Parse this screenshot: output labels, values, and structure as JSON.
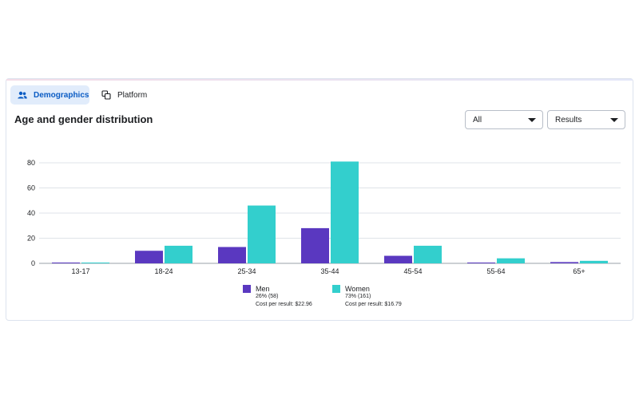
{
  "tabs": {
    "demographics_label": "Demographics",
    "platform_label": "Platform"
  },
  "section_title": "Age and gender distribution",
  "filters": {
    "audience_value": "All",
    "metric_value": "Results"
  },
  "colors": {
    "men": "#5a38c0",
    "women": "#33cfcd",
    "accent": "#0b5cc4"
  },
  "chart_data": {
    "type": "bar",
    "categories": [
      "13-17",
      "18-24",
      "25-34",
      "35-44",
      "45-54",
      "55-64",
      "65+"
    ],
    "series": [
      {
        "name": "Men",
        "values": [
          0.3,
          10,
          13,
          28,
          6,
          0.4,
          1
        ]
      },
      {
        "name": "Women",
        "values": [
          0.3,
          14,
          46,
          81,
          14,
          4,
          2
        ]
      }
    ],
    "ylim": [
      0,
      80
    ],
    "yticks": [
      0,
      20,
      40,
      60,
      80
    ],
    "grid": true,
    "legend_position": "bottom"
  },
  "legend": {
    "men": {
      "label": "Men",
      "share": "26% (58)",
      "cost": "Cost per result: $22.96"
    },
    "women": {
      "label": "Women",
      "share": "73% (161)",
      "cost": "Cost per result: $16.79"
    }
  }
}
